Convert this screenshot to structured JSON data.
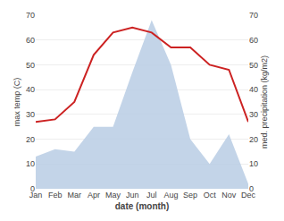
{
  "chart_data": {
    "type": "line",
    "categories": [
      "Jan",
      "Feb",
      "Mar",
      "Apr",
      "May",
      "Jun",
      "Jul",
      "Aug",
      "Sep",
      "Oct",
      "Nov",
      "Dec"
    ],
    "xlabel": "date (month)",
    "ylabel": "max temp (C)",
    "y2label": "med. precipitation (kg/m2)",
    "series": [
      {
        "type": "area",
        "color": "#b8cce4",
        "axis": "y2",
        "values": [
          13,
          16,
          15,
          25,
          25,
          47,
          68,
          50,
          20,
          10,
          22,
          2
        ]
      },
      {
        "type": "line",
        "color": "#cc2222",
        "values": [
          27,
          28,
          35,
          54,
          63,
          65,
          63,
          57,
          57,
          50,
          48,
          27
        ]
      }
    ],
    "ylim": [
      0,
      70
    ],
    "yticks": [
      0,
      10,
      20,
      30,
      40,
      50,
      60,
      70
    ],
    "y2lim": [
      0,
      70
    ],
    "y2ticks": [
      0,
      10,
      20,
      30,
      40,
      50,
      60,
      70
    ],
    "grid": true
  }
}
